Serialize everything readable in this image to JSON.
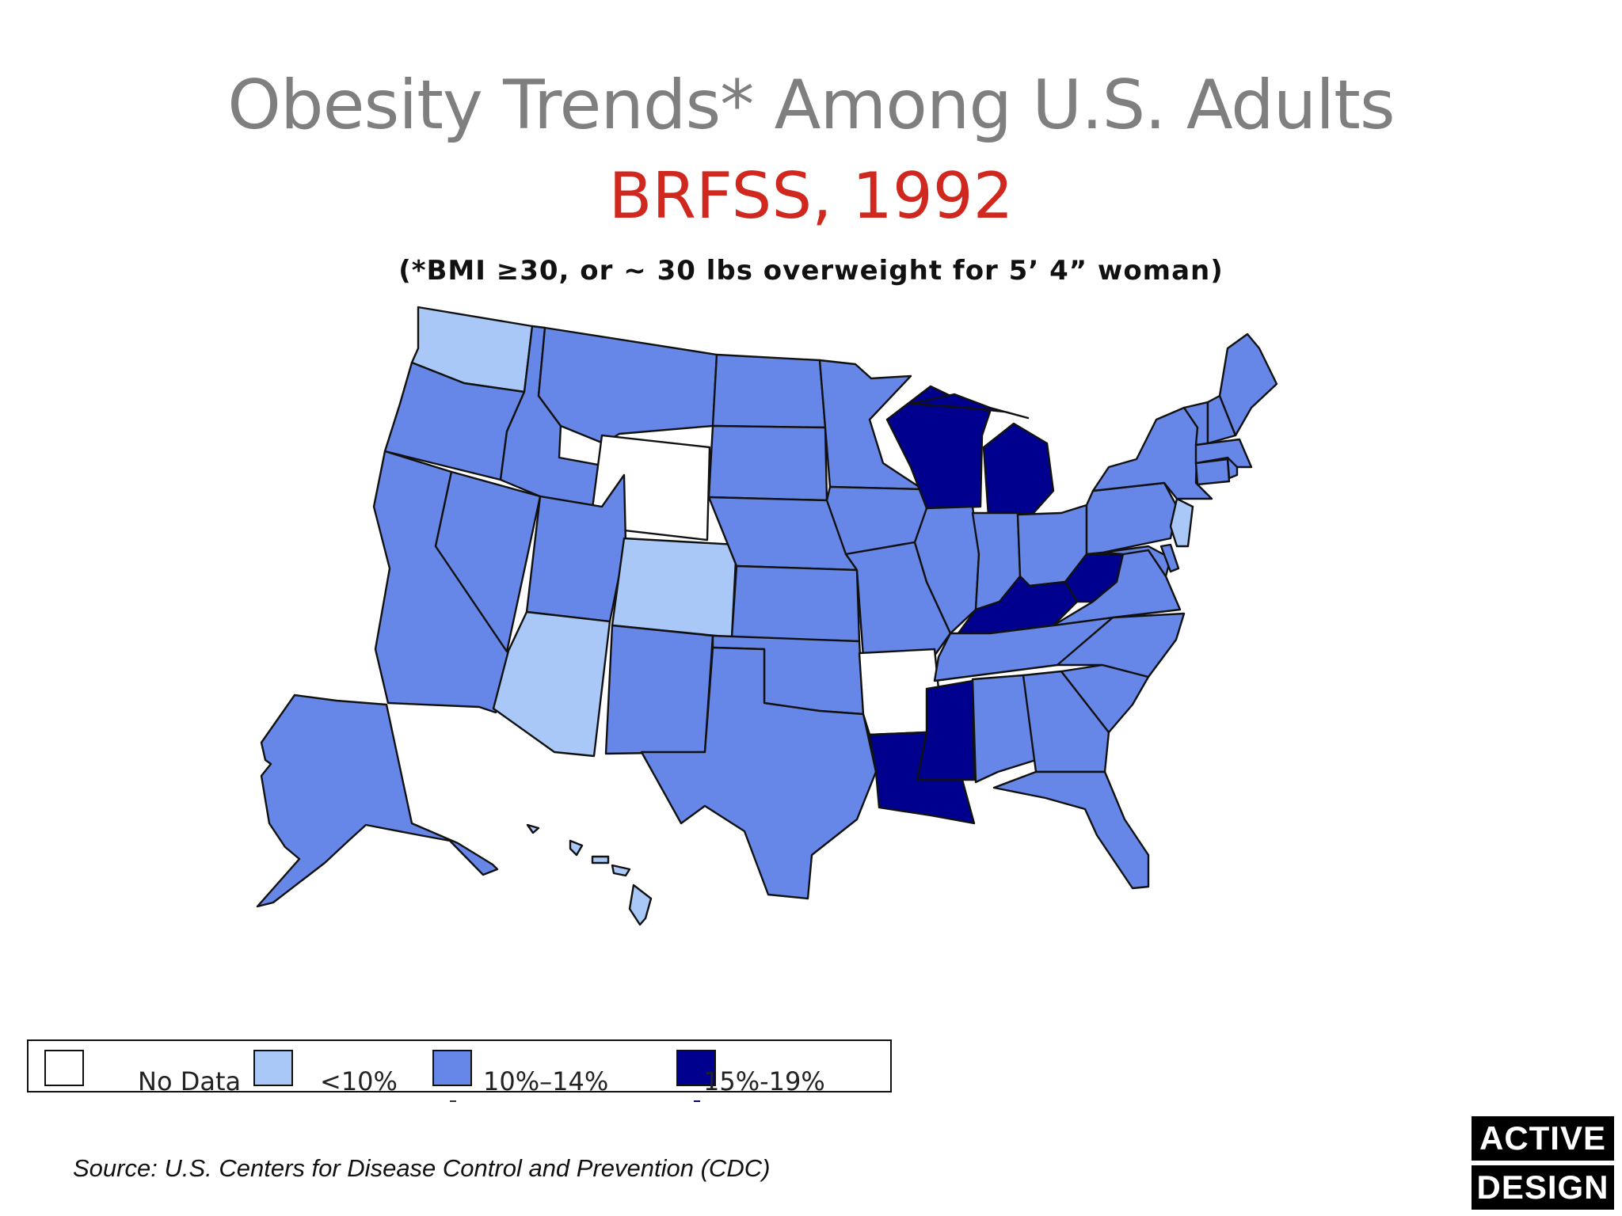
{
  "title": "Obesity Trends* Among U.S. Adults",
  "subtitle": "BRFSS, 1992",
  "note": "(*BMI ≥30, or ~ 30 lbs overweight for 5’ 4” woman)",
  "legend": [
    {
      "label": "No Data",
      "color": "#ffffff"
    },
    {
      "label": "<10%",
      "color": "#a9c8f7"
    },
    {
      "label": "10%–14%",
      "color": "#6787e8"
    },
    {
      "label": "15%-19%",
      "color": "#00008f"
    }
  ],
  "source": "Source: U.S. Centers for Disease Control and Prevention (CDC)",
  "brand": {
    "line1": "ACTIVE",
    "line2": "DESIGN"
  },
  "colors": {
    "stroke": "#111111",
    "title": "#7f7f7f",
    "subtitle": "#d0281f"
  },
  "regions": [
    {
      "name": "Washington",
      "category": "<10%"
    },
    {
      "name": "Oregon",
      "category": "10%–14%"
    },
    {
      "name": "California",
      "category": "10%–14%"
    },
    {
      "name": "Nevada",
      "category": "10%–14%"
    },
    {
      "name": "Idaho",
      "category": "10%–14%"
    },
    {
      "name": "Montana",
      "category": "10%–14%"
    },
    {
      "name": "Wyoming",
      "category": "No Data"
    },
    {
      "name": "Utah",
      "category": "10%–14%"
    },
    {
      "name": "Arizona",
      "category": "<10%"
    },
    {
      "name": "Colorado",
      "category": "<10%"
    },
    {
      "name": "New Mexico",
      "category": "10%–14%"
    },
    {
      "name": "North Dakota",
      "category": "10%–14%"
    },
    {
      "name": "South Dakota",
      "category": "10%–14%"
    },
    {
      "name": "Nebraska",
      "category": "10%–14%"
    },
    {
      "name": "Kansas",
      "category": "10%–14%"
    },
    {
      "name": "Oklahoma",
      "category": "10%–14%"
    },
    {
      "name": "Texas",
      "category": "10%–14%"
    },
    {
      "name": "Minnesota",
      "category": "10%–14%"
    },
    {
      "name": "Iowa",
      "category": "10%–14%"
    },
    {
      "name": "Missouri",
      "category": "10%–14%"
    },
    {
      "name": "Arkansas",
      "category": "No Data"
    },
    {
      "name": "Louisiana",
      "category": "15%-19%"
    },
    {
      "name": "Wisconsin",
      "category": "15%-19%"
    },
    {
      "name": "Michigan",
      "category": "15%-19%"
    },
    {
      "name": "Illinois",
      "category": "10%–14%"
    },
    {
      "name": "Indiana",
      "category": "10%–14%"
    },
    {
      "name": "Ohio",
      "category": "10%–14%"
    },
    {
      "name": "Kentucky",
      "category": "15%-19%"
    },
    {
      "name": "West Virginia",
      "category": "15%-19%"
    },
    {
      "name": "Tennessee",
      "category": "10%–14%"
    },
    {
      "name": "Mississippi",
      "category": "15%-19%"
    },
    {
      "name": "Alabama",
      "category": "10%–14%"
    },
    {
      "name": "Georgia",
      "category": "10%–14%"
    },
    {
      "name": "Florida",
      "category": "10%–14%"
    },
    {
      "name": "South Carolina",
      "category": "10%–14%"
    },
    {
      "name": "North Carolina",
      "category": "10%–14%"
    },
    {
      "name": "Virginia",
      "category": "10%–14%"
    },
    {
      "name": "Maryland",
      "category": "10%–14%"
    },
    {
      "name": "Delaware",
      "category": "10%–14%"
    },
    {
      "name": "Pennsylvania",
      "category": "10%–14%"
    },
    {
      "name": "New Jersey",
      "category": "<10%"
    },
    {
      "name": "New York",
      "category": "10%–14%"
    },
    {
      "name": "Connecticut",
      "category": "10%–14%"
    },
    {
      "name": "Rhode Island",
      "category": "10%–14%"
    },
    {
      "name": "Massachusetts",
      "category": "10%–14%"
    },
    {
      "name": "Vermont",
      "category": "10%–14%"
    },
    {
      "name": "New Hampshire",
      "category": "10%–14%"
    },
    {
      "name": "Maine",
      "category": "10%–14%"
    },
    {
      "name": "Alaska",
      "category": "10%–14%"
    },
    {
      "name": "Hawaii",
      "category": "<10%"
    }
  ]
}
